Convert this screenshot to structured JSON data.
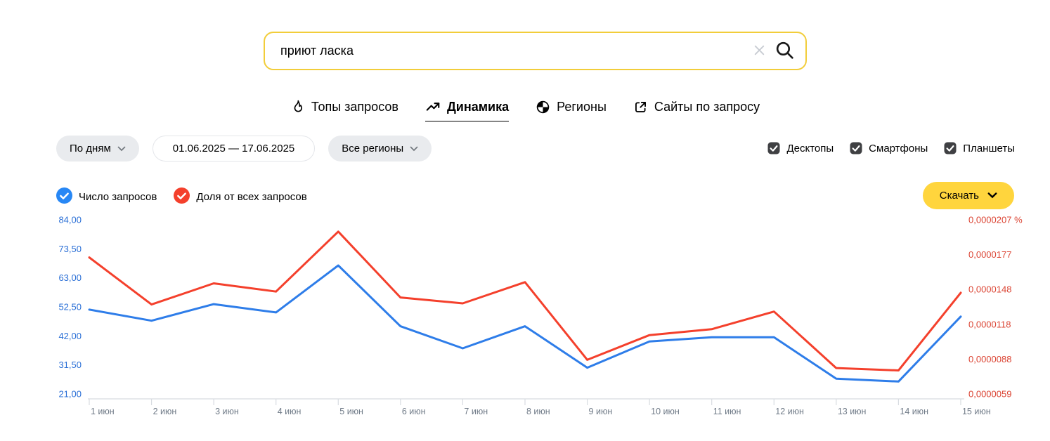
{
  "search": {
    "value": "приют ласка",
    "clear_icon": "close-icon",
    "submit_icon": "magnifier-icon"
  },
  "tabs": [
    {
      "label": "Топы запросов",
      "icon": "flame-icon",
      "active": false
    },
    {
      "label": "Динамика",
      "icon": "trending-up-icon",
      "active": true
    },
    {
      "label": "Регионы",
      "icon": "globe-icon",
      "active": false
    },
    {
      "label": "Сайты по запросу",
      "icon": "external-link-icon",
      "active": false
    }
  ],
  "filters": {
    "period_label": "По дням",
    "date_range": "01.06.2025 — 17.06.2025",
    "region_label": "Все регионы"
  },
  "device_filters": [
    {
      "label": "Десктопы",
      "checked": true
    },
    {
      "label": "Смартфоны",
      "checked": true
    },
    {
      "label": "Планшеты",
      "checked": true
    }
  ],
  "legend": [
    {
      "label": "Число запросов",
      "color": "#2787f5"
    },
    {
      "label": "Доля от всех запросов",
      "color": "#f4402c"
    }
  ],
  "download": {
    "label": "Скачать"
  },
  "colors": {
    "accent_yellow": "#ffd53d",
    "search_border": "#f2cd3a",
    "blue_line": "#2e7de9",
    "red_line": "#f4402c",
    "axis_line": "#d8dce1",
    "x_label": "#6f7a87"
  },
  "chart_data": {
    "type": "line",
    "x": [
      "1 июн",
      "2 июн",
      "3 июн",
      "4 июн",
      "5 июн",
      "6 июн",
      "7 июн",
      "8 июн",
      "9 июн",
      "10 июн",
      "11 июн",
      "12 июн",
      "13 июн",
      "14 июн",
      "15 июн"
    ],
    "series": [
      {
        "name": "Число запросов",
        "axis": "left",
        "color": "#2e7de9",
        "values": [
          51.5,
          47.5,
          53.5,
          50.5,
          67.5,
          45.5,
          37.5,
          45.5,
          30.5,
          40,
          41.5,
          41.5,
          26.5,
          25.5,
          49
        ]
      },
      {
        "name": "Доля от всех запросов",
        "axis": "right",
        "color": "#f4402c",
        "values": [
          1.75e-05,
          1.35e-05,
          1.53e-05,
          1.46e-05,
          1.97e-05,
          1.41e-05,
          1.36e-05,
          1.54e-05,
          8.8e-06,
          1.09e-05,
          1.14e-05,
          1.29e-05,
          8.1e-06,
          7.9e-06,
          1.45e-05
        ]
      }
    ],
    "left_axis": {
      "tick_labels": [
        "84,00",
        "73,50",
        "63,00",
        "52,50",
        "42,00",
        "31,50",
        "21,00"
      ],
      "max": 84,
      "min": 21,
      "color": "#2a6fd6"
    },
    "right_axis": {
      "tick_labels": [
        "0,0000207 %",
        "0,0000177",
        "0,0000148",
        "0,0000118",
        "0,0000088",
        "0,0000059"
      ],
      "max": 2.07e-05,
      "min": 5.9e-06,
      "color": "#db4433"
    },
    "grid": false,
    "legend_position": "top-left",
    "title": "",
    "xlabel": "",
    "ylabel": ""
  }
}
